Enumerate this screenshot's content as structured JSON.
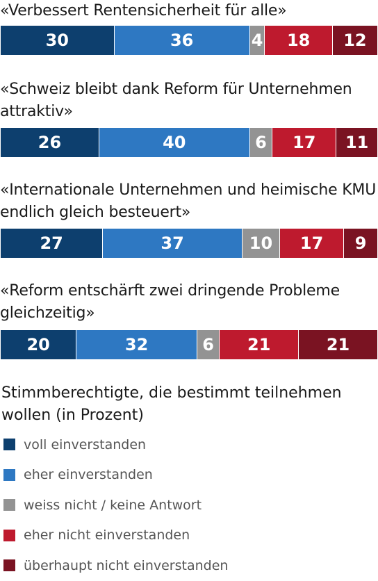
{
  "chart_data": {
    "type": "bar",
    "orientation": "horizontal",
    "stacked": true,
    "categories": [
      "«Verbessert Rentensicherheit für alle»",
      "«Schweiz bleibt dank Reform für Unternehmen attraktiv»",
      "«Internationale Unternehmen und heimische KMU endlich gleich besteuert»",
      "«Reform entschärft zwei dringende Probleme gleichzeitig»"
    ],
    "series": [
      {
        "name": "voll einverstanden",
        "color": "#0d3f6e",
        "values": [
          30,
          26,
          27,
          20
        ]
      },
      {
        "name": "eher einverstanden",
        "color": "#2e78c2",
        "values": [
          36,
          40,
          37,
          32
        ]
      },
      {
        "name": "weiss nicht / keine Antwort",
        "color": "#939393",
        "values": [
          4,
          6,
          10,
          6
        ]
      },
      {
        "name": "eher nicht einverstanden",
        "color": "#be1a2e",
        "values": [
          18,
          17,
          17,
          21
        ]
      },
      {
        "name": "überhaupt nicht einverstanden",
        "color": "#7a1322",
        "values": [
          12,
          11,
          9,
          21
        ]
      }
    ],
    "legend_title": "Stimmberechtigte, die bestimmt teilnehmen wollen (in Prozent)",
    "legend_position": "bottom",
    "total": 100
  }
}
